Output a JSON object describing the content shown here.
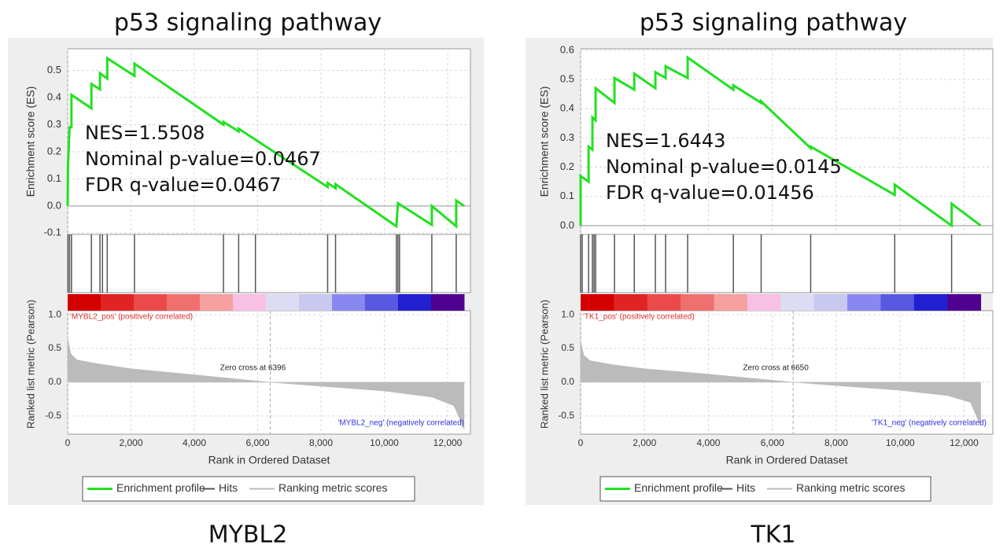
{
  "chart_data": [
    {
      "type": "gsea",
      "title": "p53 signaling pathway",
      "caption": "MYBL2",
      "annotations": [
        "NES=1.5508",
        "Nominal p-value=0.0467",
        "FDR q-value=0.0467"
      ],
      "ylabel": "Enrichment score (ES)",
      "y2label": "Ranked list metric (Pearson)",
      "xlabel": "Rank in Ordered Dataset",
      "xlim": [
        0,
        12720
      ],
      "xticks": [
        0,
        {
          "value": 2000,
          "label": "2,000"
        },
        {
          "value": 4000,
          "label": "4,000"
        },
        {
          "value": 6000,
          "label": "6,000"
        },
        {
          "value": 8000,
          "label": "8,000"
        },
        {
          "value": 10000,
          "label": "10,000"
        },
        {
          "value": 12000,
          "label": "12,000"
        }
      ],
      "ylim": [
        -0.105,
        0.58
      ],
      "yticks": [
        -0.1,
        {
          "value": 0,
          "label": "0.0"
        },
        0.1,
        0.2,
        0.3,
        0.4,
        0.5
      ],
      "y2lim": [
        -0.77,
        1.06
      ],
      "y2ticks": [
        {
          "value": 1,
          "label": "1.0"
        },
        0.5,
        {
          "value": 0,
          "label": "0.0"
        },
        -0.5
      ],
      "grid": true,
      "pos_label": "'MYBL2_pos' (positively correlated)",
      "neg_label": "'MYBL2_neg' (negatively correlated)",
      "zero_cross": 6396,
      "zero_cross_label": "Zero cross at 6396",
      "heatmap_colors": [
        "#d40000",
        "#e02424",
        "#ea4a4a",
        "#f07070",
        "#f6a0a0",
        "#f8c0e4",
        "#dcdcf4",
        "#c8c8f0",
        "#8888f0",
        "#5858e0",
        "#2020d0",
        "#500090"
      ],
      "series": [
        {
          "name": "Enrichment profile",
          "color": "#22e022",
          "x": [
            0,
            10,
            60,
            120,
            120,
            750,
            750,
            1020,
            1020,
            1250,
            1250,
            2110,
            2110,
            4920,
            4920,
            5400,
            5400,
            8210,
            8210,
            8460,
            8460,
            10380,
            10430,
            11500,
            11500,
            12270,
            12270,
            12520
          ],
          "values": [
            0,
            0.15,
            0.29,
            0.29,
            0.41,
            0.36,
            0.45,
            0.43,
            0.49,
            0.47,
            0.545,
            0.48,
            0.525,
            0.3,
            0.31,
            0.275,
            0.285,
            0.07,
            0.085,
            0.065,
            0.08,
            -0.075,
            0.01,
            -0.07,
            0,
            -0.075,
            0.02,
            0
          ]
        },
        {
          "name": "Hits",
          "color": "#555555",
          "x": [
            10,
            60,
            120,
            750,
            1020,
            1100,
            1250,
            2110,
            4920,
            5400,
            5930,
            8210,
            8460,
            10380,
            10430,
            10480,
            11500,
            12270
          ]
        },
        {
          "name": "Ranking metric scores",
          "color": "#bbbbbb",
          "x": [
            0,
            100,
            300,
            1000,
            2000,
            4000,
            6396,
            8000,
            10000,
            11500,
            12200,
            12520
          ],
          "values": [
            0.65,
            0.42,
            0.33,
            0.27,
            0.2,
            0.11,
            0,
            -0.06,
            -0.13,
            -0.22,
            -0.35,
            -0.7
          ]
        }
      ]
    },
    {
      "type": "gsea",
      "title": "p53 signaling pathway",
      "caption": "TK1",
      "annotations": [
        "NES=1.6443",
        "Nominal p-value=0.0145",
        "FDR q-value=0.01456"
      ],
      "ylabel": "Enrichment score (ES)",
      "y2label": "Ranked list metric (Pearson)",
      "xlabel": "Rank in Ordered Dataset",
      "xlim": [
        0,
        12900
      ],
      "xticks": [
        0,
        {
          "value": 2000,
          "label": "2,000"
        },
        {
          "value": 4000,
          "label": "4,000"
        },
        {
          "value": 6000,
          "label": "6,000"
        },
        {
          "value": 8000,
          "label": "8,000"
        },
        {
          "value": 10000,
          "label": "10,000"
        },
        {
          "value": 12000,
          "label": "12,000"
        }
      ],
      "ylim": [
        -0.03,
        0.605
      ],
      "yticks": [
        {
          "value": 0,
          "label": "0.0"
        },
        0.1,
        0.2,
        0.3,
        0.4,
        0.5,
        0.6
      ],
      "y2lim": [
        -0.77,
        1.06
      ],
      "y2ticks": [
        {
          "value": 1,
          "label": "1.0"
        },
        0.5,
        {
          "value": 0,
          "label": "0.0"
        },
        -0.5
      ],
      "grid": true,
      "pos_label": "'TK1_pos' (positively correlated)",
      "neg_label": "'TK1_neg' (negatively correlated)",
      "zero_cross": 6650,
      "zero_cross_label": "Zero cross at 6650",
      "heatmap_colors": [
        "#d40000",
        "#e02424",
        "#ea4a4a",
        "#f07070",
        "#f6a0a0",
        "#f8c0e4",
        "#dcdcf4",
        "#c8c8f0",
        "#8888f0",
        "#5858e0",
        "#2020d0",
        "#500090"
      ],
      "series": [
        {
          "name": "Enrichment profile",
          "color": "#22e022",
          "x": [
            0,
            0,
            250,
            250,
            370,
            370,
            470,
            470,
            1060,
            1060,
            1680,
            1680,
            2340,
            2340,
            2660,
            2660,
            3350,
            3350,
            4780,
            4780,
            5650,
            5650,
            7200,
            7200,
            9830,
            9830,
            11610,
            11610,
            12520
          ],
          "values": [
            0,
            0.17,
            0.15,
            0.27,
            0.26,
            0.37,
            0.36,
            0.47,
            0.42,
            0.505,
            0.465,
            0.52,
            0.47,
            0.525,
            0.505,
            0.545,
            0.505,
            0.575,
            0.465,
            0.48,
            0.42,
            0.425,
            0.265,
            0.27,
            0.105,
            0.14,
            0,
            0.075,
            0
          ]
        },
        {
          "name": "Hits",
          "color": "#555555",
          "x": [
            0,
            50,
            250,
            370,
            420,
            470,
            1060,
            1680,
            2340,
            2660,
            3350,
            4780,
            5650,
            7200,
            9830,
            11610
          ]
        },
        {
          "name": "Ranking metric scores",
          "color": "#bbbbbb",
          "x": [
            0,
            100,
            300,
            1000,
            2000,
            4000,
            6650,
            8000,
            10000,
            11500,
            12200,
            12520
          ],
          "values": [
            0.62,
            0.4,
            0.32,
            0.26,
            0.2,
            0.12,
            0,
            -0.05,
            -0.12,
            -0.2,
            -0.3,
            -0.65
          ]
        }
      ]
    }
  ]
}
